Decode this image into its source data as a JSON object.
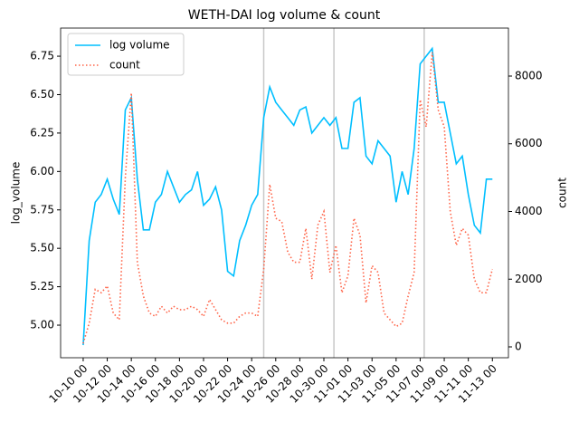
{
  "chart_data": {
    "type": "line",
    "title": "WETH-DAI log volume & count",
    "ylabel": "log_volume",
    "y2label": "count",
    "x": [
      "10-10 00",
      "10-10 12",
      "10-11 00",
      "10-11 12",
      "10-12 00",
      "10-12 12",
      "10-13 00",
      "10-13 12",
      "10-14 00",
      "10-14 12",
      "10-15 00",
      "10-15 12",
      "10-16 00",
      "10-16 12",
      "10-17 00",
      "10-17 12",
      "10-18 00",
      "10-18 12",
      "10-19 00",
      "10-19 12",
      "10-20 00",
      "10-20 12",
      "10-21 00",
      "10-21 12",
      "10-22 00",
      "10-22 12",
      "10-23 00",
      "10-23 12",
      "10-24 00",
      "10-24 12",
      "10-25 00",
      "10-25 12",
      "10-26 00",
      "10-26 12",
      "10-27 00",
      "10-27 12",
      "10-28 00",
      "10-28 12",
      "10-29 00",
      "10-29 12",
      "10-30 00",
      "10-30 12",
      "10-31 00",
      "10-31 12",
      "11-01 00",
      "11-01 12",
      "11-02 00",
      "11-02 12",
      "11-03 00",
      "11-03 12",
      "11-04 00",
      "11-04 12",
      "11-05 00",
      "11-05 12",
      "11-06 00",
      "11-06 12",
      "11-07 00",
      "11-07 12",
      "11-08 00",
      "11-08 12",
      "11-09 00",
      "11-09 12",
      "11-10 00",
      "11-10 12",
      "11-11 00",
      "11-11 12",
      "11-12 00",
      "11-12 12",
      "11-13 00"
    ],
    "series": [
      {
        "name": "log volume",
        "color": "#00bfff",
        "axis": "y",
        "dash": false,
        "values": [
          4.87,
          5.55,
          5.8,
          5.85,
          5.95,
          5.82,
          5.72,
          6.4,
          6.48,
          5.95,
          5.62,
          5.62,
          5.8,
          5.85,
          6.0,
          5.9,
          5.8,
          5.85,
          5.88,
          6.0,
          5.78,
          5.82,
          5.9,
          5.75,
          5.35,
          5.32,
          5.55,
          5.65,
          5.78,
          5.85,
          6.35,
          6.55,
          6.45,
          6.4,
          6.35,
          6.3,
          6.4,
          6.42,
          6.25,
          6.3,
          6.35,
          6.3,
          6.35,
          6.15,
          6.15,
          6.45,
          6.48,
          6.1,
          6.05,
          6.2,
          6.15,
          6.1,
          5.8,
          6.0,
          5.85,
          6.15,
          6.7,
          6.75,
          6.8,
          6.45,
          6.45,
          6.25,
          6.05,
          6.1,
          5.85,
          5.65,
          5.6,
          5.95,
          5.95
        ]
      },
      {
        "name": "count",
        "color": "#ff6347",
        "axis": "y2",
        "dash": true,
        "values": [
          100,
          700,
          1700,
          1600,
          1800,
          1000,
          800,
          5000,
          7500,
          2500,
          1500,
          1000,
          900,
          1200,
          1000,
          1200,
          1100,
          1100,
          1200,
          1100,
          900,
          1400,
          1100,
          800,
          700,
          700,
          900,
          1000,
          1000,
          900,
          2300,
          4800,
          3800,
          3700,
          2800,
          2500,
          2500,
          3500,
          2000,
          3600,
          4000,
          2200,
          3000,
          1600,
          2100,
          3800,
          3300,
          1300,
          2400,
          2200,
          1000,
          800,
          600,
          700,
          1500,
          2200,
          7300,
          6500,
          8700,
          7000,
          6500,
          4000,
          3000,
          3500,
          3300,
          2000,
          1600,
          1600,
          2300
        ]
      }
    ],
    "xlim": [
      "10-08 03",
      "11-14 08"
    ],
    "xticks": [
      "10-10 00",
      "10-12 00",
      "10-14 00",
      "10-16 00",
      "10-18 00",
      "10-20 00",
      "10-22 00",
      "10-24 00",
      "10-26 00",
      "10-28 00",
      "10-30 00",
      "11-01 00",
      "11-03 00",
      "11-05 00",
      "11-07 00",
      "11-09 00",
      "11-11 00",
      "11-13 00"
    ],
    "ylim": [
      4.788,
      6.933
    ],
    "yticks": [
      {
        "value": 5,
        "label": "5.00"
      },
      5.25,
      {
        "value": 5.5,
        "label": "5.50"
      },
      5.75,
      {
        "value": 6,
        "label": "6.00"
      },
      6.25,
      {
        "value": 6.5,
        "label": "6.50"
      },
      6.75
    ],
    "y2lim": [
      -321,
      9418
    ],
    "y2ticks": [
      0,
      2000,
      4000,
      6000,
      8000
    ],
    "vlines": [
      "10-25 00",
      "10-30 20",
      "11-07 08"
    ],
    "legend": "upper left"
  }
}
